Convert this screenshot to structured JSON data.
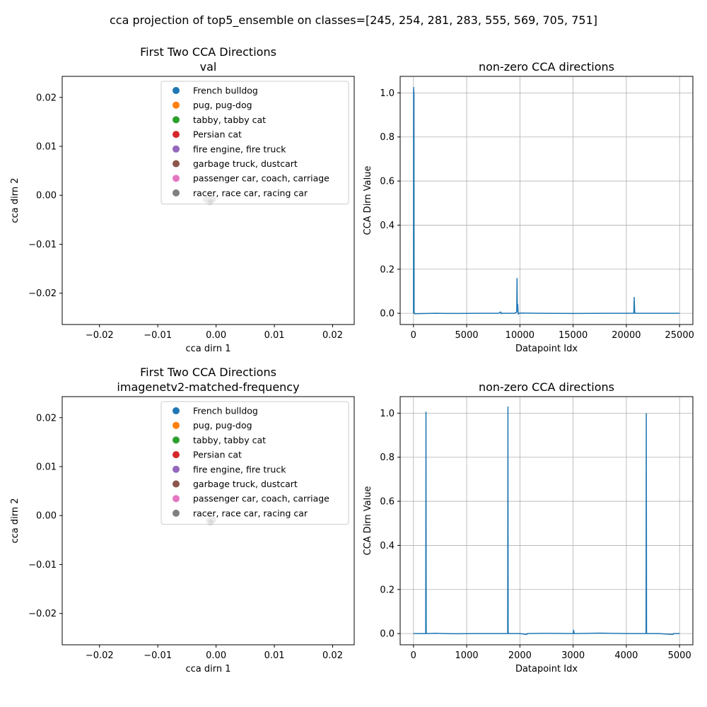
{
  "figure": {
    "suptitle": "cca projection of top5_ensemble on classes=[245, 254, 281, 283, 555, 569, 705, 751]"
  },
  "colors": {
    "c0": "#1f77b4",
    "c1": "#ff7f0e",
    "c2": "#2ca02c",
    "c3": "#d62728",
    "c4": "#9467bd",
    "c5": "#8c564b",
    "c6": "#e377c2",
    "c7": "#7f7f7f",
    "grid": "#b0b0b0"
  },
  "chart_data": [
    {
      "type": "scatter",
      "title": "First Two CCA Directions",
      "subtitle": "val",
      "xlabel": "cca dirn 1",
      "ylabel": "cca dirn 2",
      "xlim": [
        -0.0264,
        0.0237
      ],
      "ylim": [
        -0.0264,
        0.0243
      ],
      "xticks": [
        -0.02,
        -0.01,
        0.0,
        0.01,
        0.02
      ],
      "xtick_labels": [
        "−0.02",
        "−0.01",
        "0.00",
        "0.01",
        "0.02"
      ],
      "yticks": [
        -0.02,
        -0.01,
        0.0,
        0.01,
        0.02
      ],
      "ytick_labels": [
        "−0.02",
        "−0.01",
        "0.00",
        "0.01",
        "0.02"
      ],
      "grid": false,
      "legend_position": "upper-right",
      "series": [
        {
          "name": "French bulldog",
          "color": "#1f77b4",
          "points": [
            [
              -0.0011,
              -0.0011
            ],
            [
              -0.001,
              -0.0012
            ],
            [
              -0.0012,
              -0.001
            ]
          ]
        },
        {
          "name": "pug, pug-dog",
          "color": "#ff7f0e",
          "points": [
            [
              -0.0011,
              -0.0012
            ],
            [
              -0.001,
              -0.0011
            ]
          ]
        },
        {
          "name": "tabby, tabby cat",
          "color": "#2ca02c",
          "points": [
            [
              -0.0011,
              -0.0011
            ],
            [
              -0.0012,
              -0.0012
            ]
          ]
        },
        {
          "name": "Persian cat",
          "color": "#d62728",
          "points": [
            [
              -0.001,
              -0.0011
            ],
            [
              -0.0011,
              -0.001
            ]
          ]
        },
        {
          "name": "fire engine, fire truck",
          "color": "#9467bd",
          "points": [
            [
              -0.0011,
              -0.0012
            ],
            [
              -0.0012,
              -0.0011
            ]
          ]
        },
        {
          "name": "garbage truck, dustcart",
          "color": "#8c564b",
          "points": [
            [
              -0.001,
              -0.0012
            ],
            [
              -0.0011,
              -0.0011
            ]
          ]
        },
        {
          "name": "passenger car, coach, carriage",
          "color": "#e377c2",
          "points": [
            [
              -0.0011,
              -0.001
            ],
            [
              -0.0012,
              -0.0012
            ]
          ]
        },
        {
          "name": "racer, race car, racing car",
          "color": "#7f7f7f",
          "points": [
            [
              -0.0011,
              -0.0011
            ],
            [
              -0.0006,
              -0.0008
            ],
            [
              -0.0016,
              -0.0009
            ]
          ]
        }
      ],
      "marker_points": [
        [
          -0.0011,
          -0.0011
        ],
        [
          -0.0008,
          -0.0012
        ]
      ]
    },
    {
      "type": "line",
      "title": "non-zero CCA directions",
      "xlabel": "Datapoint Idx",
      "ylabel": "CCA Dirn Value",
      "xlim": [
        -1250,
        26250
      ],
      "ylim": [
        -0.051,
        1.075
      ],
      "xticks": [
        0,
        5000,
        10000,
        15000,
        20000,
        25000
      ],
      "xtick_labels": [
        "0",
        "5000",
        "10000",
        "15000",
        "20000",
        "25000"
      ],
      "yticks": [
        0.0,
        0.2,
        0.4,
        0.6,
        0.8,
        1.0
      ],
      "ytick_labels": [
        "0.0",
        "0.2",
        "0.4",
        "0.6",
        "0.8",
        "1.0"
      ],
      "grid": true,
      "series": [
        {
          "color": "#1f77b4",
          "x": [
            0,
            10,
            20,
            25,
            30,
            40,
            50,
            60,
            80,
            100,
            2000,
            4000,
            6000,
            8000,
            8200,
            8250,
            8300,
            9500,
            9700,
            9730,
            9760,
            9800,
            9830,
            9860,
            9900,
            10000,
            12000,
            15000,
            18000,
            20000,
            20700,
            20740,
            20780,
            20820,
            22000,
            25000
          ],
          "y": [
            0.0,
            1.0,
            1.025,
            0.99,
            1.01,
            0.995,
            1.0,
            0.0,
            0.002,
            -0.002,
            0.0,
            -0.001,
            0.0,
            0.0,
            0.006,
            -0.002,
            0.0,
            0.0,
            0.005,
            0.158,
            0.01,
            0.04,
            0.005,
            -0.004,
            0.0,
            0.001,
            0.0,
            -0.001,
            0.0,
            0.0,
            0.0,
            0.072,
            0.01,
            0.0,
            0.0,
            0.0
          ]
        }
      ]
    },
    {
      "type": "scatter",
      "title": "First Two CCA Directions",
      "subtitle": "imagenetv2-matched-frequency",
      "xlabel": "cca dirn 1",
      "ylabel": "cca dirn 2",
      "xlim": [
        -0.0264,
        0.0237
      ],
      "ylim": [
        -0.0264,
        0.0243
      ],
      "xticks": [
        -0.02,
        -0.01,
        0.0,
        0.01,
        0.02
      ],
      "xtick_labels": [
        "−0.02",
        "−0.01",
        "0.00",
        "0.01",
        "0.02"
      ],
      "yticks": [
        -0.02,
        -0.01,
        0.0,
        0.01,
        0.02
      ],
      "ytick_labels": [
        "−0.02",
        "−0.01",
        "0.00",
        "0.01",
        "0.02"
      ],
      "grid": false,
      "legend_position": "upper-right",
      "series": [
        {
          "name": "French bulldog",
          "color": "#1f77b4",
          "points": [
            [
              -0.001,
              -0.0011
            ],
            [
              -0.0009,
              -0.0012
            ]
          ]
        },
        {
          "name": "pug, pug-dog",
          "color": "#ff7f0e",
          "points": [
            [
              -0.001,
              -0.0012
            ],
            [
              -0.0009,
              -0.0011
            ]
          ]
        },
        {
          "name": "tabby, tabby cat",
          "color": "#2ca02c",
          "points": [
            [
              -0.001,
              -0.0011
            ],
            [
              -0.0011,
              -0.0012
            ]
          ]
        },
        {
          "name": "Persian cat",
          "color": "#d62728",
          "points": [
            [
              -0.0009,
              -0.0011
            ],
            [
              -0.001,
              -0.001
            ]
          ]
        },
        {
          "name": "fire engine, fire truck",
          "color": "#9467bd",
          "points": [
            [
              -0.001,
              -0.0012
            ],
            [
              -0.0011,
              -0.0011
            ]
          ]
        },
        {
          "name": "garbage truck, dustcart",
          "color": "#8c564b",
          "points": [
            [
              -0.0009,
              -0.0012
            ],
            [
              -0.001,
              -0.0011
            ]
          ]
        },
        {
          "name": "passenger car, coach, carriage",
          "color": "#e377c2",
          "points": [
            [
              -0.001,
              -0.001
            ],
            [
              -0.0011,
              -0.0012
            ]
          ]
        },
        {
          "name": "racer, race car, racing car",
          "color": "#7f7f7f",
          "points": [
            [
              -0.001,
              -0.0011
            ],
            [
              -0.0006,
              -0.0009
            ]
          ]
        }
      ],
      "marker_points": [
        [
          -0.001,
          -0.0011
        ],
        [
          -0.0008,
          -0.0012
        ]
      ]
    },
    {
      "type": "line",
      "title": "non-zero CCA directions",
      "xlabel": "Datapoint Idx",
      "ylabel": "CCA Dirn Value",
      "xlim": [
        -250,
        5250
      ],
      "ylim": [
        -0.051,
        1.075
      ],
      "xticks": [
        0,
        1000,
        2000,
        3000,
        4000,
        5000
      ],
      "xtick_labels": [
        "0",
        "1000",
        "2000",
        "3000",
        "4000",
        "5000"
      ],
      "yticks": [
        0.0,
        0.2,
        0.4,
        0.6,
        0.8,
        1.0
      ],
      "ytick_labels": [
        "0.0",
        "0.2",
        "0.4",
        "0.6",
        "0.8",
        "1.0"
      ],
      "grid": true,
      "series": [
        {
          "color": "#1f77b4",
          "x": [
            0,
            200,
            230,
            235,
            240,
            250,
            400,
            800,
            1200,
            1600,
            1770,
            1775,
            1780,
            1790,
            2000,
            2130,
            2140,
            2500,
            3000,
            3010,
            3020,
            3030,
            3500,
            4000,
            4370,
            4375,
            4380,
            4390,
            4600,
            4880,
            4890,
            5000
          ],
          "y": [
            0.0,
            0.0,
            0.0,
            1.005,
            0.0,
            0.0,
            0.001,
            -0.001,
            0.0,
            0.0,
            0.0,
            1.028,
            0.0,
            0.0,
            0.0,
            -0.004,
            0.0,
            0.001,
            0.0,
            0.015,
            0.0,
            0.0,
            0.002,
            0.0,
            0.0,
            0.998,
            0.0,
            0.0,
            0.0,
            -0.004,
            0.0,
            0.0
          ]
        }
      ]
    }
  ]
}
